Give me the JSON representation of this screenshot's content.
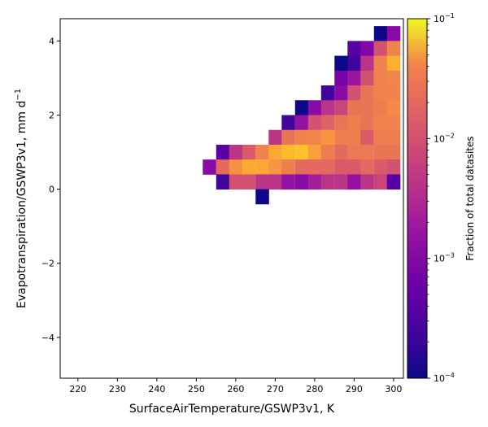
{
  "chart_data": {
    "type": "heatmap",
    "xlabel": "SurfaceAirTemperature/GSWP3v1,  K",
    "ylabel": "Evapotranspiration/GSWP3v1,  mm d",
    "ylabel_sup": "−1",
    "xlim": [
      215.5,
      302.5
    ],
    "ylim": [
      -5.1,
      4.6
    ],
    "x_ticks": [
      220,
      230,
      240,
      250,
      260,
      270,
      280,
      290,
      300
    ],
    "y_ticks": [
      -4,
      -2,
      0,
      2,
      4
    ],
    "y_tick_labels": [
      "−4",
      "−2",
      "0",
      "2",
      "4"
    ],
    "cell_width": 3.33,
    "cell_height": 0.4,
    "colorscale": "plasma",
    "colorbar": {
      "label": "Fraction of total datasites",
      "scale": "log",
      "range": [
        0.0001,
        0.1
      ],
      "ticks": [
        {
          "value": 0.1,
          "base": "10",
          "exp": "−1"
        },
        {
          "value": 0.01,
          "base": "10",
          "exp": "−2"
        },
        {
          "value": 0.001,
          "base": "10",
          "exp": "−3"
        },
        {
          "value": 0.0001,
          "base": "10",
          "exp": "−4"
        }
      ]
    },
    "grid": false,
    "rows": [
      {
        "y": 4.2,
        "cells": [
          [
            296.7,
            8e-05
          ],
          [
            300.0,
            0.0007
          ]
        ]
      },
      {
        "y": 3.8,
        "cells": [
          [
            290.0,
            0.0003
          ],
          [
            293.3,
            0.0006
          ],
          [
            296.7,
            0.004
          ],
          [
            300.0,
            0.012
          ]
        ]
      },
      {
        "y": 3.4,
        "cells": [
          [
            286.7,
            0.0001
          ],
          [
            290.0,
            0.0002
          ],
          [
            293.3,
            0.002
          ],
          [
            296.7,
            0.012
          ],
          [
            300.0,
            0.03
          ]
        ]
      },
      {
        "y": 3.0,
        "cells": [
          [
            286.7,
            0.0005
          ],
          [
            290.0,
            0.001
          ],
          [
            293.3,
            0.004
          ],
          [
            296.7,
            0.012
          ],
          [
            300.0,
            0.013
          ]
        ]
      },
      {
        "y": 2.6,
        "cells": [
          [
            283.3,
            0.0002
          ],
          [
            286.7,
            0.0007
          ],
          [
            290.0,
            0.004
          ],
          [
            293.3,
            0.009
          ],
          [
            296.7,
            0.012
          ],
          [
            300.0,
            0.012
          ]
        ]
      },
      {
        "y": 2.2,
        "cells": [
          [
            276.7,
            0.0001
          ],
          [
            280.0,
            0.0007
          ],
          [
            283.3,
            0.002
          ],
          [
            286.7,
            0.003
          ],
          [
            290.0,
            0.009
          ],
          [
            293.3,
            0.009
          ],
          [
            296.7,
            0.011
          ],
          [
            300.0,
            0.014
          ]
        ]
      },
      {
        "y": 1.8,
        "cells": [
          [
            273.3,
            0.0002
          ],
          [
            276.7,
            0.0009
          ],
          [
            280.0,
            0.004
          ],
          [
            283.3,
            0.006
          ],
          [
            286.7,
            0.009
          ],
          [
            290.0,
            0.011
          ],
          [
            293.3,
            0.009
          ],
          [
            296.7,
            0.012
          ],
          [
            300.0,
            0.012
          ]
        ]
      },
      {
        "y": 1.4,
        "cells": [
          [
            270.0,
            0.002
          ],
          [
            273.3,
            0.009
          ],
          [
            276.7,
            0.012
          ],
          [
            280.0,
            0.013
          ],
          [
            283.3,
            0.018
          ],
          [
            286.7,
            0.011
          ],
          [
            290.0,
            0.011
          ],
          [
            293.3,
            0.005
          ],
          [
            296.7,
            0.011
          ],
          [
            300.0,
            0.011
          ]
        ]
      },
      {
        "y": 1.0,
        "cells": [
          [
            256.7,
            0.0003
          ],
          [
            260.0,
            0.002
          ],
          [
            263.3,
            0.005
          ],
          [
            266.7,
            0.012
          ],
          [
            270.0,
            0.025
          ],
          [
            273.3,
            0.035
          ],
          [
            276.7,
            0.04
          ],
          [
            280.0,
            0.022
          ],
          [
            283.3,
            0.011
          ],
          [
            286.7,
            0.007
          ],
          [
            290.0,
            0.01
          ],
          [
            293.3,
            0.01
          ],
          [
            296.7,
            0.009
          ],
          [
            300.0,
            0.009
          ]
        ]
      },
      {
        "y": 0.6,
        "cells": [
          [
            253.3,
            0.0007
          ],
          [
            256.7,
            0.007
          ],
          [
            260.0,
            0.016
          ],
          [
            263.3,
            0.026
          ],
          [
            266.7,
            0.026
          ],
          [
            270.0,
            0.018
          ],
          [
            273.3,
            0.011
          ],
          [
            276.7,
            0.007
          ],
          [
            280.0,
            0.007
          ],
          [
            283.3,
            0.007
          ],
          [
            286.7,
            0.005
          ],
          [
            290.0,
            0.005
          ],
          [
            293.3,
            0.007
          ],
          [
            296.7,
            0.005
          ],
          [
            300.0,
            0.004
          ]
        ]
      },
      {
        "y": 0.2,
        "cells": [
          [
            256.7,
            0.0002
          ],
          [
            260.0,
            0.004
          ],
          [
            263.3,
            0.004
          ],
          [
            266.7,
            0.002
          ],
          [
            270.0,
            0.002
          ],
          [
            273.3,
            0.0009
          ],
          [
            276.7,
            0.0007
          ],
          [
            280.0,
            0.0012
          ],
          [
            283.3,
            0.002
          ],
          [
            286.7,
            0.002
          ],
          [
            290.0,
            0.0009
          ],
          [
            293.3,
            0.002
          ],
          [
            296.7,
            0.003
          ],
          [
            300.0,
            0.0003
          ]
        ]
      },
      {
        "y": -0.2,
        "cells": [
          [
            266.7,
            0.0001
          ]
        ]
      }
    ]
  }
}
